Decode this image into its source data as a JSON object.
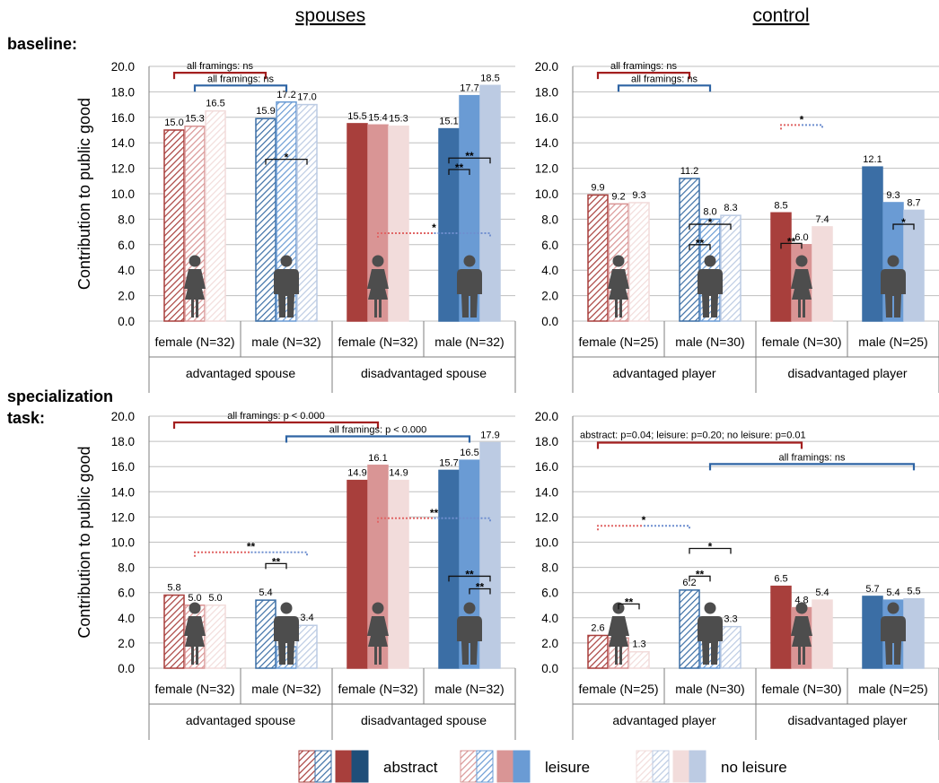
{
  "headings": {
    "spouses": "spouses",
    "control": "control"
  },
  "row_labels": [
    [
      "baseline:"
    ],
    [
      "specialization",
      "task:"
    ]
  ],
  "legend": {
    "items": [
      {
        "label": "abstract",
        "swatches": [
          {
            "hatched": true,
            "group": "red"
          },
          {
            "hatched": true,
            "group": "blue"
          },
          {
            "hatched": false,
            "group": "red"
          },
          {
            "hatched": false,
            "group": "blue"
          }
        ]
      },
      {
        "label": "leisure",
        "swatches": [
          {
            "hatched": true,
            "group": "red"
          },
          {
            "hatched": true,
            "group": "blue"
          },
          {
            "hatched": false,
            "group": "red"
          },
          {
            "hatched": false,
            "group": "blue"
          }
        ]
      },
      {
        "label": "no leisure",
        "swatches": [
          {
            "hatched": true,
            "group": "red"
          },
          {
            "hatched": true,
            "group": "blue"
          },
          {
            "hatched": false,
            "group": "red"
          },
          {
            "hatched": false,
            "group": "blue"
          }
        ]
      }
    ]
  },
  "colors": {
    "red": [
      "#a83f3c",
      "#d99595",
      "#f2dcdb"
    ],
    "blue": [
      "#3b6ea5",
      "#6a9bd4",
      "#bccbe3"
    ],
    "legend_dark_blue": "#1f4e79",
    "bracket_red": "#a31f1f",
    "bracket_blue": "#2e64a4",
    "dot_red": "#e06666",
    "dot_blue": "#6f8fcf",
    "figure_icon": "#4d4d4d",
    "axis": "#7f7f7f",
    "grid": "#bfbfbf"
  },
  "chart_data": [
    {
      "type": "bar",
      "id": "spouses-baseline",
      "ylabel": "Contribution to public good",
      "ylim": [
        0,
        20
      ],
      "yticks": [
        "0.0",
        "2.0",
        "4.0",
        "6.0",
        "8.0",
        "10.0",
        "12.0",
        "14.0",
        "16.0",
        "18.0",
        "20.0"
      ],
      "groups": [
        {
          "label": "advantaged spouse",
          "categories": [
            {
              "label": "female (N=32)",
              "gender": "female",
              "color": "red",
              "hatched": true,
              "values": [
                15.0,
                15.3,
                16.5
              ],
              "labels": [
                "15.0",
                "15.3",
                "16.5"
              ]
            },
            {
              "label": "male (N=32)",
              "gender": "male",
              "color": "blue",
              "hatched": true,
              "values": [
                15.9,
                17.2,
                17.0
              ],
              "labels": [
                "15.9",
                "17.2",
                "17.0"
              ]
            }
          ]
        },
        {
          "label": "disadvantaged spouse",
          "categories": [
            {
              "label": "female (N=32)",
              "gender": "female",
              "color": "red",
              "hatched": false,
              "values": [
                15.5,
                15.4,
                15.3
              ],
              "labels": [
                "15.5",
                "15.4",
                "15.3"
              ]
            },
            {
              "label": "male (N=32)",
              "gender": "male",
              "color": "blue",
              "hatched": false,
              "values": [
                15.1,
                17.7,
                18.5
              ],
              "labels": [
                "15.1",
                "17.7",
                "18.5"
              ]
            }
          ]
        }
      ],
      "brackets": [
        {
          "color": "red",
          "from": [
            0,
            0
          ],
          "to": [
            1,
            0
          ],
          "value": 19.5,
          "label": "all framings: ns"
        },
        {
          "color": "blue",
          "from": [
            0,
            1
          ],
          "to": [
            1,
            1
          ],
          "value": 18.5,
          "label": "all framings: ns"
        }
      ],
      "sig": [
        {
          "cat": 1,
          "a": 0,
          "b": 2,
          "value": 12.7,
          "label": "*"
        },
        {
          "cat": 3,
          "a": 0,
          "b": 1,
          "value": 11.9,
          "label": "**"
        },
        {
          "cat": 3,
          "a": 0,
          "b": 2,
          "value": 12.8,
          "label": "**"
        }
      ],
      "dotted": [
        {
          "from": [
            2,
            1
          ],
          "to": [
            3,
            2
          ],
          "value": 6.9,
          "label": "*"
        }
      ]
    },
    {
      "type": "bar",
      "id": "control-baseline",
      "ylim": [
        0,
        20
      ],
      "yticks": [
        "0.0",
        "2.0",
        "4.0",
        "6.0",
        "8.0",
        "10.0",
        "12.0",
        "14.0",
        "16.0",
        "18.0",
        "20.0"
      ],
      "groups": [
        {
          "label": "advantaged player",
          "categories": [
            {
              "label": "female (N=25)",
              "gender": "female",
              "color": "red",
              "hatched": true,
              "values": [
                9.9,
                9.2,
                9.3
              ],
              "labels": [
                "9.9",
                "9.2",
                "9.3"
              ]
            },
            {
              "label": "male (N=30)",
              "gender": "male",
              "color": "blue",
              "hatched": true,
              "values": [
                11.2,
                8.0,
                8.3
              ],
              "labels": [
                "11.2",
                "8.0",
                "8.3"
              ]
            }
          ]
        },
        {
          "label": "disadvantaged player",
          "categories": [
            {
              "label": "female (N=30)",
              "gender": "female",
              "color": "red",
              "hatched": false,
              "values": [
                8.5,
                6.0,
                7.4
              ],
              "labels": [
                "8.5",
                "6.0",
                "7.4"
              ]
            },
            {
              "label": "male (N=25)",
              "gender": "male",
              "color": "blue",
              "hatched": false,
              "values": [
                12.1,
                9.3,
                8.7
              ],
              "labels": [
                "12.1",
                "9.3",
                "8.7"
              ]
            }
          ]
        }
      ],
      "brackets": [
        {
          "color": "red",
          "from": [
            0,
            0
          ],
          "to": [
            1,
            0
          ],
          "value": 19.5,
          "label": "all framings: ns"
        },
        {
          "color": "blue",
          "from": [
            0,
            1
          ],
          "to": [
            1,
            1
          ],
          "value": 18.5,
          "label": "all framings: ns"
        }
      ],
      "sig": [
        {
          "cat": 1,
          "a": 0,
          "b": 1,
          "value": 6.0,
          "label": "**"
        },
        {
          "cat": 1,
          "a": 0,
          "b": 2,
          "value": 7.6,
          "label": "*"
        },
        {
          "cat": 2,
          "a": 0,
          "b": 1,
          "value": 6.1,
          "label": "**"
        },
        {
          "cat": 3,
          "a": 1,
          "b": 2,
          "value": 7.6,
          "label": "*"
        }
      ],
      "dotted": [
        {
          "from": [
            2,
            0
          ],
          "to": [
            2,
            2
          ],
          "value": 15.4,
          "label": "*"
        }
      ]
    },
    {
      "type": "bar",
      "id": "spouses-specialization",
      "ylabel": "Contribution to public good",
      "ylim": [
        0,
        20
      ],
      "yticks": [
        "0.0",
        "2.0",
        "4.0",
        "6.0",
        "8.0",
        "10.0",
        "12.0",
        "14.0",
        "16.0",
        "18.0",
        "20.0"
      ],
      "groups": [
        {
          "label": "advantaged spouse",
          "categories": [
            {
              "label": "female (N=32)",
              "gender": "female",
              "color": "red",
              "hatched": true,
              "values": [
                5.8,
                5.0,
                5.0
              ],
              "labels": [
                "5.8",
                "5.0",
                "5.0"
              ]
            },
            {
              "label": "male (N=32)",
              "gender": "male",
              "color": "blue",
              "hatched": true,
              "values": [
                5.4,
                1.7,
                3.4
              ],
              "labels": [
                "5.4",
                "1.7",
                "3.4"
              ]
            }
          ]
        },
        {
          "label": "disadvantaged spouse",
          "categories": [
            {
              "label": "female (N=32)",
              "gender": "female",
              "color": "red",
              "hatched": false,
              "values": [
                14.9,
                16.1,
                14.9
              ],
              "labels": [
                "14.9",
                "16.1",
                "14.9"
              ]
            },
            {
              "label": "male (N=32)",
              "gender": "male",
              "color": "blue",
              "hatched": false,
              "values": [
                15.7,
                16.5,
                17.9
              ],
              "labels": [
                "15.7",
                "16.5",
                "17.9"
              ]
            }
          ]
        }
      ],
      "brackets": [
        {
          "color": "red",
          "from": [
            0,
            0
          ],
          "to": [
            2,
            1
          ],
          "value": 19.5,
          "label": "all framings: p < 0.000"
        },
        {
          "color": "blue",
          "from": [
            1,
            1
          ],
          "to": [
            3,
            1
          ],
          "value": 18.4,
          "label": "all framings: p < 0.000"
        }
      ],
      "sig": [
        {
          "cat": 1,
          "a": 0,
          "b": 1,
          "value": 8.3,
          "label": "**"
        },
        {
          "cat": 3,
          "a": 0,
          "b": 2,
          "value": 7.3,
          "label": "**"
        },
        {
          "cat": 3,
          "a": 1,
          "b": 2,
          "value": 6.3,
          "label": "**"
        }
      ],
      "dotted": [
        {
          "from": [
            0,
            1
          ],
          "to": [
            1,
            2
          ],
          "value": 9.2,
          "label": "**"
        },
        {
          "from": [
            2,
            1
          ],
          "to": [
            3,
            2
          ],
          "value": 11.9,
          "label": "**"
        }
      ]
    },
    {
      "type": "bar",
      "id": "control-specialization",
      "ylim": [
        0,
        20
      ],
      "yticks": [
        "0.0",
        "2.0",
        "4.0",
        "6.0",
        "8.0",
        "10.0",
        "12.0",
        "14.0",
        "16.0",
        "18.0",
        "20.0"
      ],
      "groups": [
        {
          "label": "advantaged player",
          "categories": [
            {
              "label": "female (N=25)",
              "gender": "female",
              "color": "red",
              "hatched": true,
              "values": [
                2.6,
                2.4,
                1.3
              ],
              "labels": [
                "2.6",
                "2.4",
                "1.3"
              ]
            },
            {
              "label": "male (N=30)",
              "gender": "male",
              "color": "blue",
              "hatched": true,
              "values": [
                6.2,
                2.9,
                3.3
              ],
              "labels": [
                "6.2",
                "2.9",
                "3.3"
              ]
            }
          ]
        },
        {
          "label": "disadvantaged player",
          "categories": [
            {
              "label": "female (N=30)",
              "gender": "female",
              "color": "red",
              "hatched": false,
              "values": [
                6.5,
                4.8,
                5.4
              ],
              "labels": [
                "6.5",
                "4.8",
                "5.4"
              ]
            },
            {
              "label": "male (N=25)",
              "gender": "male",
              "color": "blue",
              "hatched": false,
              "values": [
                5.7,
                5.4,
                5.5
              ],
              "labels": [
                "5.7",
                "5.4",
                "5.5"
              ]
            }
          ]
        }
      ],
      "brackets": [
        {
          "color": "red",
          "from": [
            0,
            0
          ],
          "to": [
            2,
            1
          ],
          "value": 17.9,
          "label": "abstract: p=0.04; leisure: p=0.20; no leisure: p=0.01",
          "label_left": true
        },
        {
          "color": "blue",
          "from": [
            1,
            1
          ],
          "to": [
            3,
            2
          ],
          "value": 16.2,
          "label": "all framings: ns"
        }
      ],
      "sig": [
        {
          "cat": 0,
          "a": 1,
          "b": 2,
          "value": 5.1,
          "label": "**"
        },
        {
          "cat": 1,
          "a": 0,
          "b": 1,
          "value": 7.3,
          "label": "**"
        },
        {
          "cat": 1,
          "a": 0,
          "b": 2,
          "value": 9.5,
          "label": "*"
        }
      ],
      "dotted": [
        {
          "from": [
            0,
            0
          ],
          "to": [
            1,
            0
          ],
          "value": 11.3,
          "label": "*"
        }
      ]
    }
  ]
}
